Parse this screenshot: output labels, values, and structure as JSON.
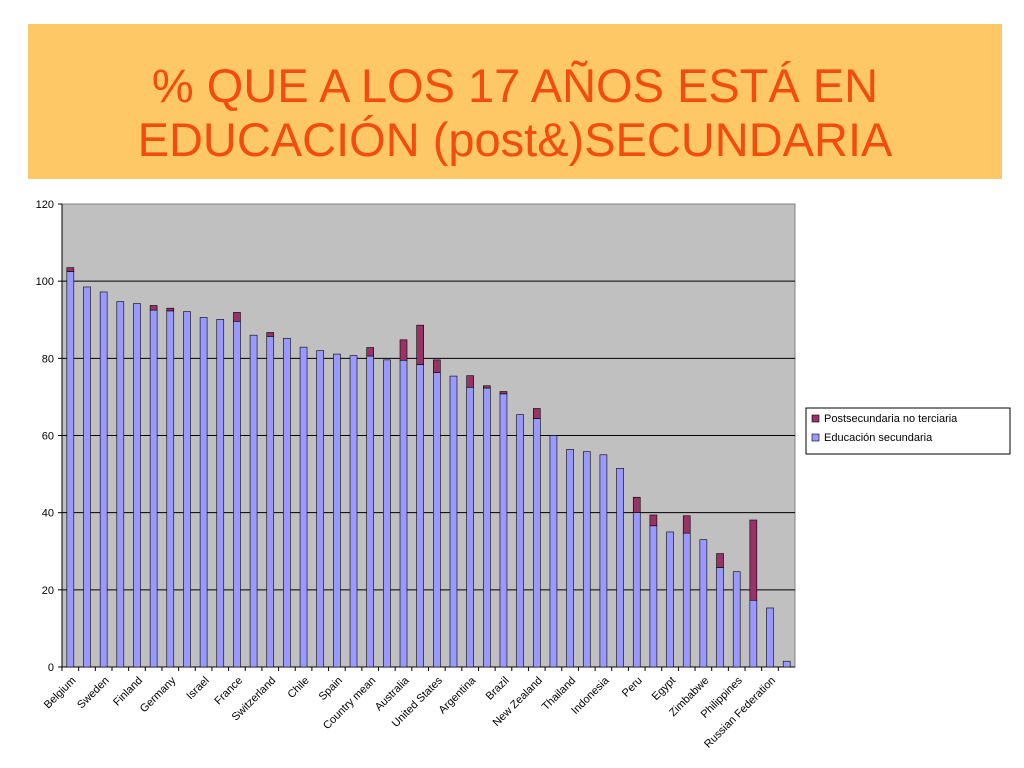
{
  "slide": {
    "title_line1": "% QUE A LOS 17 AÑOS ESTÁ EN",
    "title_line2": "EDUCACIÓN (post&)SECUNDARIA"
  },
  "colors": {
    "title_bg": "#ffc866",
    "title_text": "#f24d0e",
    "plot_bg": "#c0c0c0",
    "secundaria": "#9999ff",
    "postsecundaria": "#993366"
  },
  "chart_data": {
    "type": "bar",
    "stacked": true,
    "ylim": [
      0,
      120
    ],
    "yticks": [
      0,
      20,
      40,
      60,
      80,
      100,
      120
    ],
    "grid": true,
    "legend_position": "right",
    "category_labels_shown": [
      "Belgium",
      "Sweden",
      "Finland",
      "Germany",
      "Israel",
      "France",
      "Switzerland",
      "Chile",
      "Spain",
      "Country mean",
      "Australia",
      "United States",
      "Argentina",
      "Brazil",
      "New Zealand",
      "Thailand",
      "Indonesia",
      "Peru",
      "Egypt",
      "Zimbabwe",
      "Philippines",
      "Russian Federation"
    ],
    "bars": [
      {
        "label": "Belgium",
        "secundaria": 102.5,
        "postsecundaria": 1
      },
      {
        "label": "",
        "secundaria": 98.5,
        "postsecundaria": 0
      },
      {
        "label": "Sweden",
        "secundaria": 97.2,
        "postsecundaria": 0
      },
      {
        "label": "",
        "secundaria": 94.7,
        "postsecundaria": 0
      },
      {
        "label": "Finland",
        "secundaria": 94.2,
        "postsecundaria": 0
      },
      {
        "label": "",
        "secundaria": 92.5,
        "postsecundaria": 1.2
      },
      {
        "label": "Germany",
        "secundaria": 92.3,
        "postsecundaria": 0.7
      },
      {
        "label": "",
        "secundaria": 92.1,
        "postsecundaria": 0
      },
      {
        "label": "Israel",
        "secundaria": 90.6,
        "postsecundaria": 0
      },
      {
        "label": "",
        "secundaria": 90.1,
        "postsecundaria": 0
      },
      {
        "label": "France",
        "secundaria": 89.6,
        "postsecundaria": 2.3
      },
      {
        "label": "",
        "secundaria": 86.0,
        "postsecundaria": 0
      },
      {
        "label": "Switzerland",
        "secundaria": 85.7,
        "postsecundaria": 1
      },
      {
        "label": "",
        "secundaria": 85.2,
        "postsecundaria": 0
      },
      {
        "label": "Chile",
        "secundaria": 82.9,
        "postsecundaria": 0
      },
      {
        "label": "",
        "secundaria": 82.0,
        "postsecundaria": 0
      },
      {
        "label": "Spain",
        "secundaria": 81.1,
        "postsecundaria": 0
      },
      {
        "label": "",
        "secundaria": 80.7,
        "postsecundaria": 0
      },
      {
        "label": "Country mean",
        "secundaria": 80.6,
        "postsecundaria": 2.2
      },
      {
        "label": "",
        "secundaria": 79.6,
        "postsecundaria": 0
      },
      {
        "label": "Australia",
        "secundaria": 79.5,
        "postsecundaria": 5.3
      },
      {
        "label": "",
        "secundaria": 78.4,
        "postsecundaria": 10.2
      },
      {
        "label": "United States",
        "secundaria": 76.3,
        "postsecundaria": 3.3
      },
      {
        "label": "",
        "secundaria": 75.4,
        "postsecundaria": 0
      },
      {
        "label": "Argentina",
        "secundaria": 72.5,
        "postsecundaria": 3.0
      },
      {
        "label": "",
        "secundaria": 72.3,
        "postsecundaria": 0.6
      },
      {
        "label": "Brazil",
        "secundaria": 70.8,
        "postsecundaria": 0.6
      },
      {
        "label": "",
        "secundaria": 65.4,
        "postsecundaria": 0
      },
      {
        "label": "New Zealand",
        "secundaria": 64.4,
        "postsecundaria": 2.6
      },
      {
        "label": "",
        "secundaria": 60.0,
        "postsecundaria": 0
      },
      {
        "label": "Thailand",
        "secundaria": 56.4,
        "postsecundaria": 0
      },
      {
        "label": "",
        "secundaria": 55.8,
        "postsecundaria": 0
      },
      {
        "label": "Indonesia",
        "secundaria": 55.0,
        "postsecundaria": 0
      },
      {
        "label": "",
        "secundaria": 51.5,
        "postsecundaria": 0
      },
      {
        "label": "Peru",
        "secundaria": 40.0,
        "postsecundaria": 4.0
      },
      {
        "label": "",
        "secundaria": 36.6,
        "postsecundaria": 2.8
      },
      {
        "label": "Egypt",
        "secundaria": 35.0,
        "postsecundaria": 0
      },
      {
        "label": "",
        "secundaria": 34.7,
        "postsecundaria": 4.5
      },
      {
        "label": "Zimbabwe",
        "secundaria": 33.0,
        "postsecundaria": 0
      },
      {
        "label": "",
        "secundaria": 25.8,
        "postsecundaria": 3.6
      },
      {
        "label": "Philippines",
        "secundaria": 24.7,
        "postsecundaria": 0
      },
      {
        "label": "",
        "secundaria": 17.3,
        "postsecundaria": 20.8
      },
      {
        "label": "Russian Federation",
        "secundaria": 15.3,
        "postsecundaria": 0
      },
      {
        "label": "",
        "secundaria": 1.5,
        "postsecundaria": 0
      }
    ],
    "series": [
      {
        "name": "Postsecundaria  no terciaria",
        "key": "postsecundaria"
      },
      {
        "name": "Educación secundaria",
        "key": "secundaria"
      }
    ]
  }
}
